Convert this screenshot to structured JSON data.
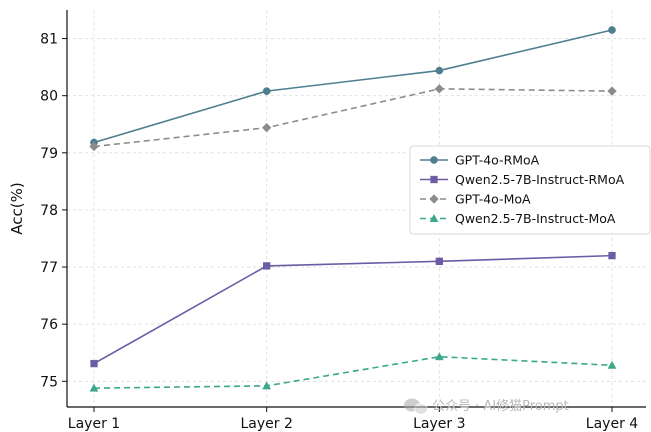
{
  "chart_data": {
    "type": "line",
    "title": "",
    "xlabel": "",
    "ylabel": "Acc(%)",
    "categories": [
      "Layer 1",
      "Layer 2",
      "Layer 3",
      "Layer 4"
    ],
    "ylim": [
      74.55,
      81.5
    ],
    "yticks": [
      75,
      76,
      77,
      78,
      79,
      80,
      81
    ],
    "grid": true,
    "legend_position": "center-right",
    "series": [
      {
        "name": "GPT-4o-RMoA",
        "values": [
          79.18,
          80.08,
          80.44,
          81.15
        ],
        "color": "#4e7f8e",
        "line_style": "solid",
        "marker": "circle"
      },
      {
        "name": "Qwen2.5-7B-Instruct-RMoA",
        "values": [
          75.31,
          77.02,
          77.1,
          77.2
        ],
        "color": "#6b5ca5",
        "line_style": "solid",
        "marker": "square"
      },
      {
        "name": "GPT-4o-MoA",
        "values": [
          79.11,
          79.44,
          80.12,
          80.08
        ],
        "color": "#8c8c8c",
        "line_style": "dashed",
        "marker": "diamond"
      },
      {
        "name": "Qwen2.5-7B-Instruct-MoA",
        "values": [
          74.88,
          74.92,
          75.43,
          75.28
        ],
        "color": "#3aa88a",
        "line_style": "dashed",
        "marker": "triangle"
      }
    ]
  },
  "watermark": {
    "text": "公众号 · AI修猫Prompt",
    "icon": "wechat-icon"
  }
}
